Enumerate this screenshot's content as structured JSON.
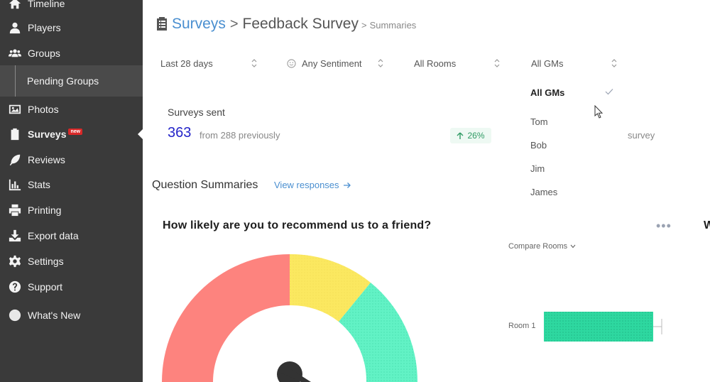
{
  "sidebar": {
    "items": [
      {
        "label": "Timeline",
        "icon": "home-icon"
      },
      {
        "label": "Players",
        "icon": "user-icon"
      },
      {
        "label": "Groups",
        "icon": "users-icon"
      },
      {
        "label": "Pending Groups",
        "icon": ""
      },
      {
        "label": "Photos",
        "icon": "image-icon"
      },
      {
        "label": "Surveys",
        "icon": "clipboard-icon",
        "badge": "new",
        "active": true
      },
      {
        "label": "Reviews",
        "icon": "feather-icon"
      },
      {
        "label": "Stats",
        "icon": "bar-chart-icon"
      },
      {
        "label": "Printing",
        "icon": "printer-icon"
      },
      {
        "label": "Export data",
        "icon": "download-icon"
      },
      {
        "label": "Settings",
        "icon": "gear-icon"
      },
      {
        "label": "Support",
        "icon": "question-circle-icon"
      },
      {
        "label": "What's New",
        "icon": "circle-icon"
      }
    ]
  },
  "header": {
    "crumbs": {
      "surveys": "Surveys",
      "sep1": ">",
      "feedback": "Feedback Survey",
      "sep2": ">",
      "summaries": "Summaries"
    }
  },
  "filters": {
    "date": "Last 28 days",
    "sentiment": "Any Sentiment",
    "rooms": "All Rooms",
    "gms": "All GMs"
  },
  "gm_dropdown": {
    "options": [
      "All GMs",
      "Tom",
      "Bob",
      "Jim",
      "James"
    ],
    "selected": "All GMs"
  },
  "stats": {
    "surveys_sent_label": "Surveys sent",
    "surveys_sent_value": "363",
    "previous_text": "from 288 previously",
    "trend": "26%",
    "survey_partial": "survey"
  },
  "question_summaries": {
    "title": "Question Summaries",
    "view_responses": "View responses",
    "question": "How likely are you to recommend us to a friend?",
    "more": "•••",
    "next_card_partial": "W",
    "compare_rooms": "Compare Rooms",
    "room_label": "Room 1"
  },
  "colors": {
    "sidebar_bg": "#3a3a3a",
    "accent_blue": "#4a8fd0",
    "gauge_red": "#fd837e",
    "gauge_yellow": "#fbe860",
    "gauge_green": "#62f2c5",
    "bar_green": "#2ed8a0"
  }
}
